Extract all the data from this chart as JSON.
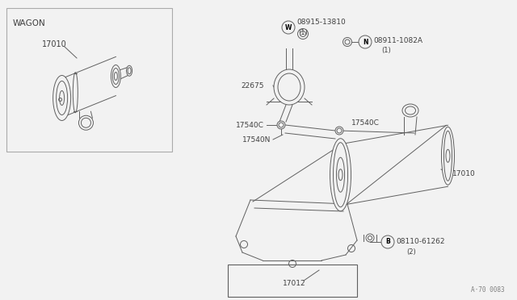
{
  "bg_color": "#f2f2f2",
  "line_color": "#606060",
  "label_color": "#404040",
  "fig_code": "A·70 0083",
  "wagon_label": "WAGON",
  "parts_labels": {
    "17010_wagon": "17010",
    "08915": "08915-13810",
    "08915_sub": "(1)",
    "08911": "08911-1082A",
    "08911_sub": "(1)",
    "22675": "22675",
    "17540C_left": "17540C",
    "17540C_right": "17540C",
    "17540N": "17540N",
    "17010_main": "17010",
    "08110": "08110-61262",
    "08110_sub": "(2)",
    "17012": "17012"
  }
}
